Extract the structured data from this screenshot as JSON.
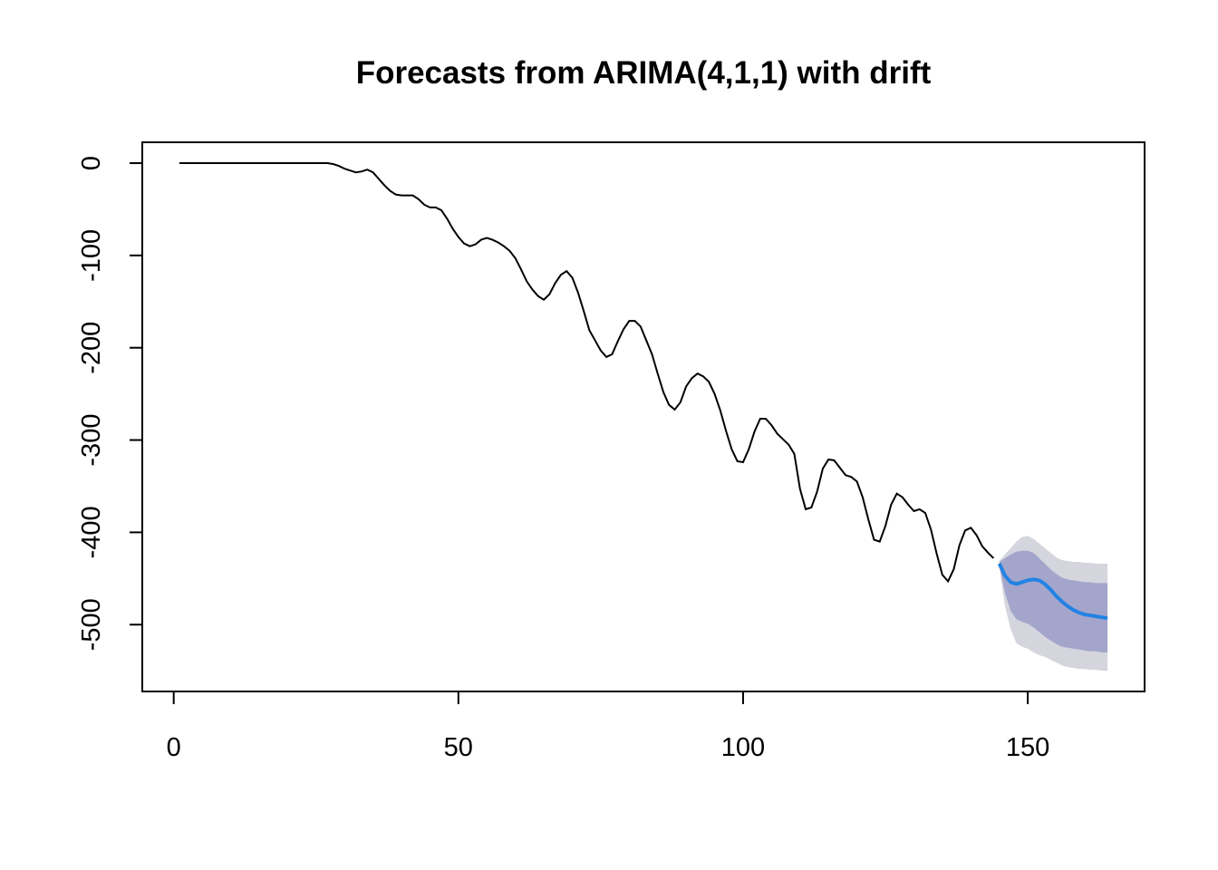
{
  "chart_data": {
    "type": "forecast",
    "title": "Forecasts from ARIMA(4,1,1) with drift",
    "xlim": [
      -5.52,
      170.52
    ],
    "ylim": [
      -572.4,
      22.6
    ],
    "xticks": [
      0,
      50,
      100,
      150
    ],
    "yticks": [
      0,
      -100,
      -200,
      -300,
      -400,
      -500
    ],
    "history": {
      "color": "#000000",
      "x": [
        1,
        2,
        3,
        4,
        5,
        6,
        7,
        8,
        9,
        10,
        11,
        12,
        13,
        14,
        15,
        16,
        17,
        18,
        19,
        20,
        21,
        22,
        23,
        24,
        25,
        26,
        27,
        28,
        29,
        30,
        31,
        32,
        33,
        34,
        35,
        36,
        37,
        38,
        39,
        40,
        41,
        42,
        43,
        44,
        45,
        46,
        47,
        48,
        49,
        50,
        51,
        52,
        53,
        54,
        55,
        56,
        57,
        58,
        59,
        60,
        61,
        62,
        63,
        64,
        65,
        66,
        67,
        68,
        69,
        70,
        71,
        72,
        73,
        74,
        75,
        76,
        77,
        78,
        79,
        80,
        81,
        82,
        83,
        84,
        85,
        86,
        87,
        88,
        89,
        90,
        91,
        92,
        93,
        94,
        95,
        96,
        97,
        98,
        99,
        100,
        101,
        102,
        103,
        104,
        105,
        106,
        107,
        108,
        109,
        110,
        111,
        112,
        113,
        114,
        115,
        116,
        117,
        118,
        119,
        120,
        121,
        122,
        123,
        124,
        125,
        126,
        127,
        128,
        129,
        130,
        131,
        132,
        133,
        134,
        135,
        136,
        137,
        138,
        139,
        140,
        141,
        142,
        143,
        144
      ],
      "values": [
        0,
        0,
        0,
        0,
        0,
        0,
        0,
        0,
        0,
        0,
        0,
        0,
        0,
        0,
        0,
        0,
        0,
        0,
        0,
        0,
        0,
        0,
        0,
        0,
        0,
        0,
        0,
        -1,
        -3,
        -6,
        -8,
        -10,
        -9,
        -7,
        -10,
        -17,
        -24,
        -30,
        -34,
        -35,
        -35,
        -35,
        -39,
        -45,
        -48,
        -48,
        -51,
        -60,
        -71,
        -80,
        -87,
        -90,
        -88,
        -83,
        -81,
        -83,
        -86,
        -90,
        -95,
        -103,
        -115,
        -128,
        -137,
        -144,
        -148,
        -142,
        -130,
        -121,
        -117,
        -124,
        -140,
        -160,
        -181,
        -192,
        -203,
        -210,
        -207,
        -193,
        -180,
        -171,
        -171,
        -177,
        -192,
        -207,
        -228,
        -248,
        -262,
        -267,
        -259,
        -242,
        -233,
        -228,
        -231,
        -237,
        -250,
        -268,
        -290,
        -310,
        -323,
        -324,
        -310,
        -291,
        -277,
        -277,
        -284,
        -293,
        -299,
        -305,
        -315,
        -353,
        -375,
        -373,
        -356,
        -331,
        -321,
        -322,
        -330,
        -338,
        -340,
        -345,
        -362,
        -386,
        -408,
        -410,
        -393,
        -370,
        -358,
        -362,
        -370,
        -377,
        -375,
        -379,
        -397,
        -423,
        -446,
        -453,
        -440,
        -414,
        -398,
        -395,
        -403,
        -415,
        -422,
        -428
      ]
    },
    "forecast": {
      "color": "#2283e4",
      "color80": "#a4a5cb",
      "color95": "#d5d5de",
      "x": [
        145,
        146,
        147,
        148,
        149,
        150,
        151,
        152,
        153,
        154,
        155,
        156,
        157,
        158,
        159,
        160,
        161,
        162,
        163,
        164
      ],
      "mean": [
        -434,
        -447,
        -454,
        -456,
        -454,
        -452,
        -451,
        -452,
        -456,
        -462,
        -469,
        -475,
        -480,
        -484,
        -487,
        -489,
        -490,
        -491,
        -492,
        -493
      ],
      "hi80": [
        -432,
        -428,
        -424,
        -421,
        -420,
        -420,
        -422,
        -428,
        -434,
        -440,
        -445,
        -449,
        -451,
        -452,
        -453,
        -454,
        -454,
        -455,
        -455,
        -455
      ],
      "lo80": [
        -436,
        -466,
        -485,
        -494,
        -497,
        -499,
        -503,
        -508,
        -513,
        -517,
        -521,
        -524,
        -525,
        -526,
        -527,
        -528,
        -529,
        -529,
        -530,
        -530
      ],
      "hi95": [
        -431,
        -424,
        -417,
        -410,
        -405,
        -404,
        -407,
        -412,
        -417,
        -422,
        -427,
        -430,
        -431,
        -432,
        -432,
        -433,
        -433,
        -434,
        -434,
        -434
      ],
      "lo95": [
        -437,
        -480,
        -505,
        -520,
        -524,
        -526,
        -530,
        -533,
        -535,
        -538,
        -541,
        -544,
        -546,
        -547,
        -548,
        -548,
        -549,
        -549,
        -550,
        -550
      ]
    }
  }
}
